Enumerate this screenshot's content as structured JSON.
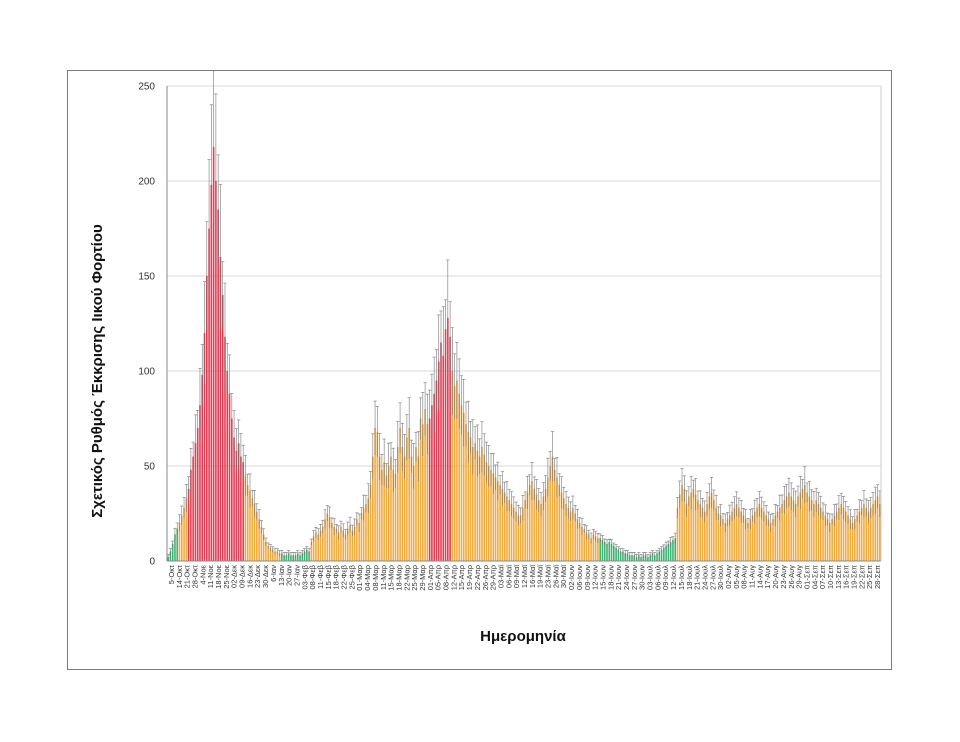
{
  "chart_data": {
    "type": "bar",
    "xlabel": "Ημερομηνία",
    "ylabel": "Σχετικός Ρυθμός Έκκρισης Ιικού Φορτίου",
    "ylim": [
      0,
      250
    ],
    "yticks": [
      0,
      50,
      100,
      150,
      200,
      250
    ],
    "grid": true,
    "error_bars": true,
    "colors": {
      "green": "#3cb371",
      "red": "#e8384f",
      "orange": "#f5a93a",
      "error": "#777777",
      "grid": "#d9d9d9"
    },
    "tick_labels": [
      "5-Οκτ",
      "14-Οκτ",
      "21-Οκτ",
      "28-Οκτ",
      "4-Νοε",
      "11-Νοε",
      "18-Νοε",
      "25-Νοε",
      "02-Δεκ",
      "09-Δεκ",
      "16-Δεκ",
      "23-Δεκ",
      "30-Δεκ",
      "6-Ιαν",
      "13-Ιαν",
      "20-Ιαν",
      "27-Ιαν",
      "03-Φεβ",
      "08-Φεβ",
      "11-Φεβ",
      "15-Φεβ",
      "18-Φεβ",
      "22-Φεβ",
      "25-Φεβ",
      "01-Μαρ",
      "04-Μαρ",
      "08-Μαρ",
      "11-Μαρ",
      "15-Μαρ",
      "18-Μαρ",
      "22-Μαρ",
      "25-Μαρ",
      "29-Μαρ",
      "01-Απρ",
      "05-Απρ",
      "08-Απρ",
      "12-Απρ",
      "15-Απρ",
      "19-Απρ",
      "22-Απρ",
      "26-Απρ",
      "29-Απρ",
      "03-Μαϊ",
      "06-Μαϊ",
      "09-Μαϊ",
      "12-Μαϊ",
      "16-Μαϊ",
      "19-Μαϊ",
      "23-Μαϊ",
      "26-Μαϊ",
      "30-Μαϊ",
      "02-Ιουν",
      "06-Ιουν",
      "09-Ιουν",
      "12-Ιουν",
      "15-Ιουν",
      "18-Ιουν",
      "21-Ιουν",
      "24-Ιουν",
      "27-Ιουν",
      "30-Ιουν",
      "03-Ιουλ",
      "06-Ιουλ",
      "09-Ιουλ",
      "12-Ιουλ",
      "15-Ιουλ",
      "18-Ιουλ",
      "21-Ιουλ",
      "24-Ιουλ",
      "27-Ιουλ",
      "30-Ιουλ",
      "02-Αυγ",
      "05-Αυγ",
      "08-Αυγ",
      "11-Αυγ",
      "14-Αυγ",
      "17-Αυγ",
      "20-Αυγ",
      "23-Αυγ",
      "26-Αυγ",
      "29-Αυγ",
      "01-Σεπ",
      "04-Σεπ",
      "07-Σεπ",
      "10-Σεπ",
      "13-Σεπ",
      "16-Σεπ",
      "19-Σεπ",
      "22-Σεπ",
      "25-Σεπ",
      "28-Σεπ"
    ],
    "segments": [
      {
        "color": "green",
        "values": [
          2,
          5,
          9,
          14,
          17
        ]
      },
      {
        "color": "orange",
        "values": [
          20,
          24,
          28,
          33
        ]
      },
      {
        "color": "red",
        "values": [
          38,
          48,
          55,
          62,
          70,
          82,
          98,
          120,
          150,
          175,
          198,
          218,
          200,
          185,
          160,
          140,
          118,
          100,
          88,
          75,
          65
        ]
      },
      {
        "color": "red",
        "values": [
          58,
          62,
          55,
          52
        ]
      },
      {
        "color": "orange",
        "values": [
          45,
          40,
          37,
          33,
          30,
          26,
          22,
          18,
          14,
          10,
          8,
          7,
          6,
          5,
          5,
          4
        ]
      },
      {
        "color": "green",
        "values": [
          4,
          3,
          3,
          4,
          3,
          3,
          3,
          4,
          3,
          4,
          5,
          6,
          5
        ]
      },
      {
        "color": "orange",
        "values": [
          10,
          13,
          15,
          14,
          16,
          18,
          22,
          25,
          23,
          20,
          18,
          17,
          15,
          18,
          16,
          14,
          17,
          19,
          16,
          18,
          22,
          20,
          25,
          28,
          30,
          33,
          40,
          55,
          70,
          68,
          55,
          48,
          52,
          45,
          50,
          55,
          48,
          46,
          60,
          70,
          60,
          55,
          65,
          70,
          55,
          50,
          60,
          55,
          75,
          72,
          80,
          72
        ]
      },
      {
        "color": "red",
        "values": [
          75,
          82,
          88,
          95,
          105,
          115,
          108,
          122,
          128,
          118
        ]
      },
      {
        "color": "orange",
        "values": [
          100,
          92,
          95,
          88,
          82,
          78,
          72,
          68,
          65,
          60,
          62,
          58,
          55,
          60,
          56,
          52,
          50,
          48,
          46,
          44,
          42,
          40,
          38,
          36,
          34,
          32,
          30,
          28,
          26,
          24,
          24,
          28,
          32,
          36,
          40,
          42,
          38,
          35,
          32,
          30,
          34,
          38,
          44,
          50,
          55,
          48,
          44,
          40,
          36,
          33,
          30,
          28,
          26,
          28,
          25,
          22,
          20,
          18,
          17,
          15,
          14,
          12,
          14,
          13,
          12
        ]
      },
      {
        "color": "green",
        "values": [
          12,
          11,
          10,
          9,
          10,
          9,
          8,
          7,
          6,
          5,
          5,
          4,
          4,
          3,
          3,
          3,
          2,
          3,
          2,
          3,
          3,
          2,
          3,
          4,
          3,
          4,
          5,
          6,
          7,
          8,
          9,
          10,
          11,
          12
        ]
      },
      {
        "color": "orange",
        "values": [
          28,
          35,
          40,
          38,
          30,
          34,
          36,
          38,
          35,
          32,
          30,
          28,
          26,
          30,
          34,
          36,
          32,
          28,
          25,
          24,
          22,
          20,
          22,
          24,
          26,
          28,
          30,
          28,
          26,
          24,
          22,
          20,
          22,
          24,
          26,
          28,
          30,
          28,
          26,
          24,
          22,
          20,
          22,
          24,
          26,
          28,
          30,
          32,
          34,
          36,
          34,
          32,
          30,
          34,
          36,
          38,
          40,
          36,
          34,
          32,
          30,
          32,
          30,
          28,
          26,
          24,
          22,
          20,
          22,
          24,
          26,
          28,
          30,
          28,
          26,
          24,
          22,
          20,
          22,
          24,
          26,
          28,
          30,
          28,
          26,
          28,
          30,
          32,
          34,
          30
        ]
      }
    ]
  }
}
